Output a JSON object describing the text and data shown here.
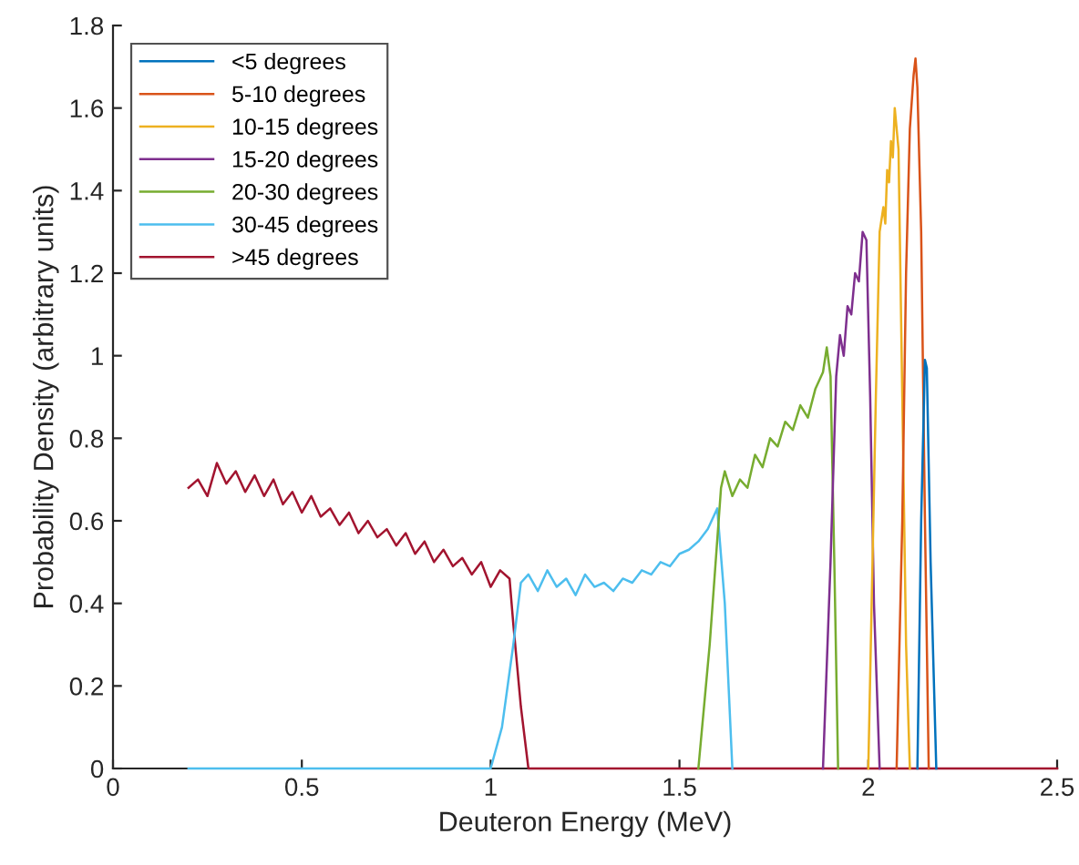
{
  "chart_data": {
    "type": "line",
    "xlabel": "Deuteron Energy (MeV)",
    "ylabel": "Probability Density (arbitrary units)",
    "xlim": [
      0,
      2.5
    ],
    "ylim": [
      0,
      1.8
    ],
    "xticks": [
      0,
      0.5,
      1,
      1.5,
      2,
      2.5
    ],
    "yticks": [
      0,
      0.2,
      0.4,
      0.6,
      0.8,
      1,
      1.2,
      1.4,
      1.6,
      1.8
    ],
    "grid": false,
    "legend": "top left",
    "marker": "none",
    "line_style": "solid",
    "series": [
      {
        "name": "<5 degrees",
        "color": "#0072bd",
        "x": [
          2.13,
          2.14,
          2.15,
          2.155,
          2.165,
          2.18
        ],
        "values": [
          0,
          0.6,
          0.99,
          0.97,
          0.5,
          0
        ]
      },
      {
        "name": "5-10 degrees",
        "color": "#d95319",
        "x": [
          2.075,
          2.09,
          2.1,
          2.11,
          2.12,
          2.125,
          2.13,
          2.14,
          2.15,
          2.16
        ],
        "values": [
          0,
          0.6,
          1.2,
          1.55,
          1.68,
          1.72,
          1.65,
          1.3,
          0.6,
          0
        ]
      },
      {
        "name": "10-15 degrees",
        "color": "#edb120",
        "x": [
          2.0,
          2.02,
          2.03,
          2.04,
          2.045,
          2.05,
          2.055,
          2.06,
          2.065,
          2.07,
          2.08,
          2.09,
          2.1,
          2.11
        ],
        "values": [
          0,
          0.9,
          1.3,
          1.36,
          1.32,
          1.45,
          1.42,
          1.52,
          1.48,
          1.6,
          1.5,
          0.9,
          0.3,
          0
        ]
      },
      {
        "name": "15-20 degrees",
        "color": "#7e2f8e",
        "x": [
          1.88,
          1.9,
          1.915,
          1.925,
          1.935,
          1.945,
          1.955,
          1.965,
          1.975,
          1.985,
          1.995,
          2.005,
          2.015,
          2.03
        ],
        "values": [
          0,
          0.5,
          0.95,
          1.05,
          1.0,
          1.12,
          1.1,
          1.2,
          1.18,
          1.3,
          1.28,
          0.9,
          0.4,
          0
        ]
      },
      {
        "name": "20-30 degrees",
        "color": "#77ac30",
        "x": [
          1.55,
          1.58,
          1.61,
          1.62,
          1.64,
          1.66,
          1.68,
          1.7,
          1.72,
          1.74,
          1.76,
          1.78,
          1.8,
          1.82,
          1.84,
          1.86,
          1.88,
          1.89,
          1.9,
          1.91,
          1.92
        ],
        "values": [
          0,
          0.3,
          0.68,
          0.72,
          0.66,
          0.7,
          0.68,
          0.76,
          0.73,
          0.8,
          0.78,
          0.84,
          0.82,
          0.88,
          0.85,
          0.92,
          0.96,
          1.02,
          0.95,
          0.5,
          0
        ]
      },
      {
        "name": "30-45 degrees",
        "color": "#4dbeee",
        "x": [
          0.2,
          1.0,
          1.03,
          1.06,
          1.08,
          1.1,
          1.125,
          1.15,
          1.175,
          1.2,
          1.225,
          1.25,
          1.275,
          1.3,
          1.325,
          1.35,
          1.375,
          1.4,
          1.425,
          1.45,
          1.475,
          1.5,
          1.525,
          1.55,
          1.575,
          1.6,
          1.62,
          1.64
        ],
        "values": [
          0,
          0,
          0.1,
          0.3,
          0.45,
          0.47,
          0.43,
          0.48,
          0.44,
          0.46,
          0.42,
          0.47,
          0.44,
          0.45,
          0.43,
          0.46,
          0.45,
          0.48,
          0.47,
          0.5,
          0.49,
          0.52,
          0.53,
          0.55,
          0.58,
          0.63,
          0.4,
          0
        ]
      },
      {
        "name": ">45 degrees",
        "color": "#a2142f",
        "x": [
          0.2,
          0.225,
          0.25,
          0.275,
          0.3,
          0.325,
          0.35,
          0.375,
          0.4,
          0.425,
          0.45,
          0.475,
          0.5,
          0.525,
          0.55,
          0.575,
          0.6,
          0.625,
          0.65,
          0.675,
          0.7,
          0.725,
          0.75,
          0.775,
          0.8,
          0.825,
          0.85,
          0.875,
          0.9,
          0.925,
          0.95,
          0.975,
          1.0,
          1.025,
          1.05,
          1.06,
          1.08,
          1.1,
          2.5
        ],
        "values": [
          0.68,
          0.7,
          0.66,
          0.74,
          0.69,
          0.72,
          0.67,
          0.71,
          0.66,
          0.7,
          0.64,
          0.67,
          0.62,
          0.66,
          0.61,
          0.63,
          0.59,
          0.62,
          0.57,
          0.6,
          0.56,
          0.58,
          0.54,
          0.57,
          0.52,
          0.55,
          0.5,
          0.53,
          0.49,
          0.51,
          0.47,
          0.5,
          0.44,
          0.48,
          0.46,
          0.35,
          0.15,
          0,
          0
        ]
      }
    ]
  }
}
